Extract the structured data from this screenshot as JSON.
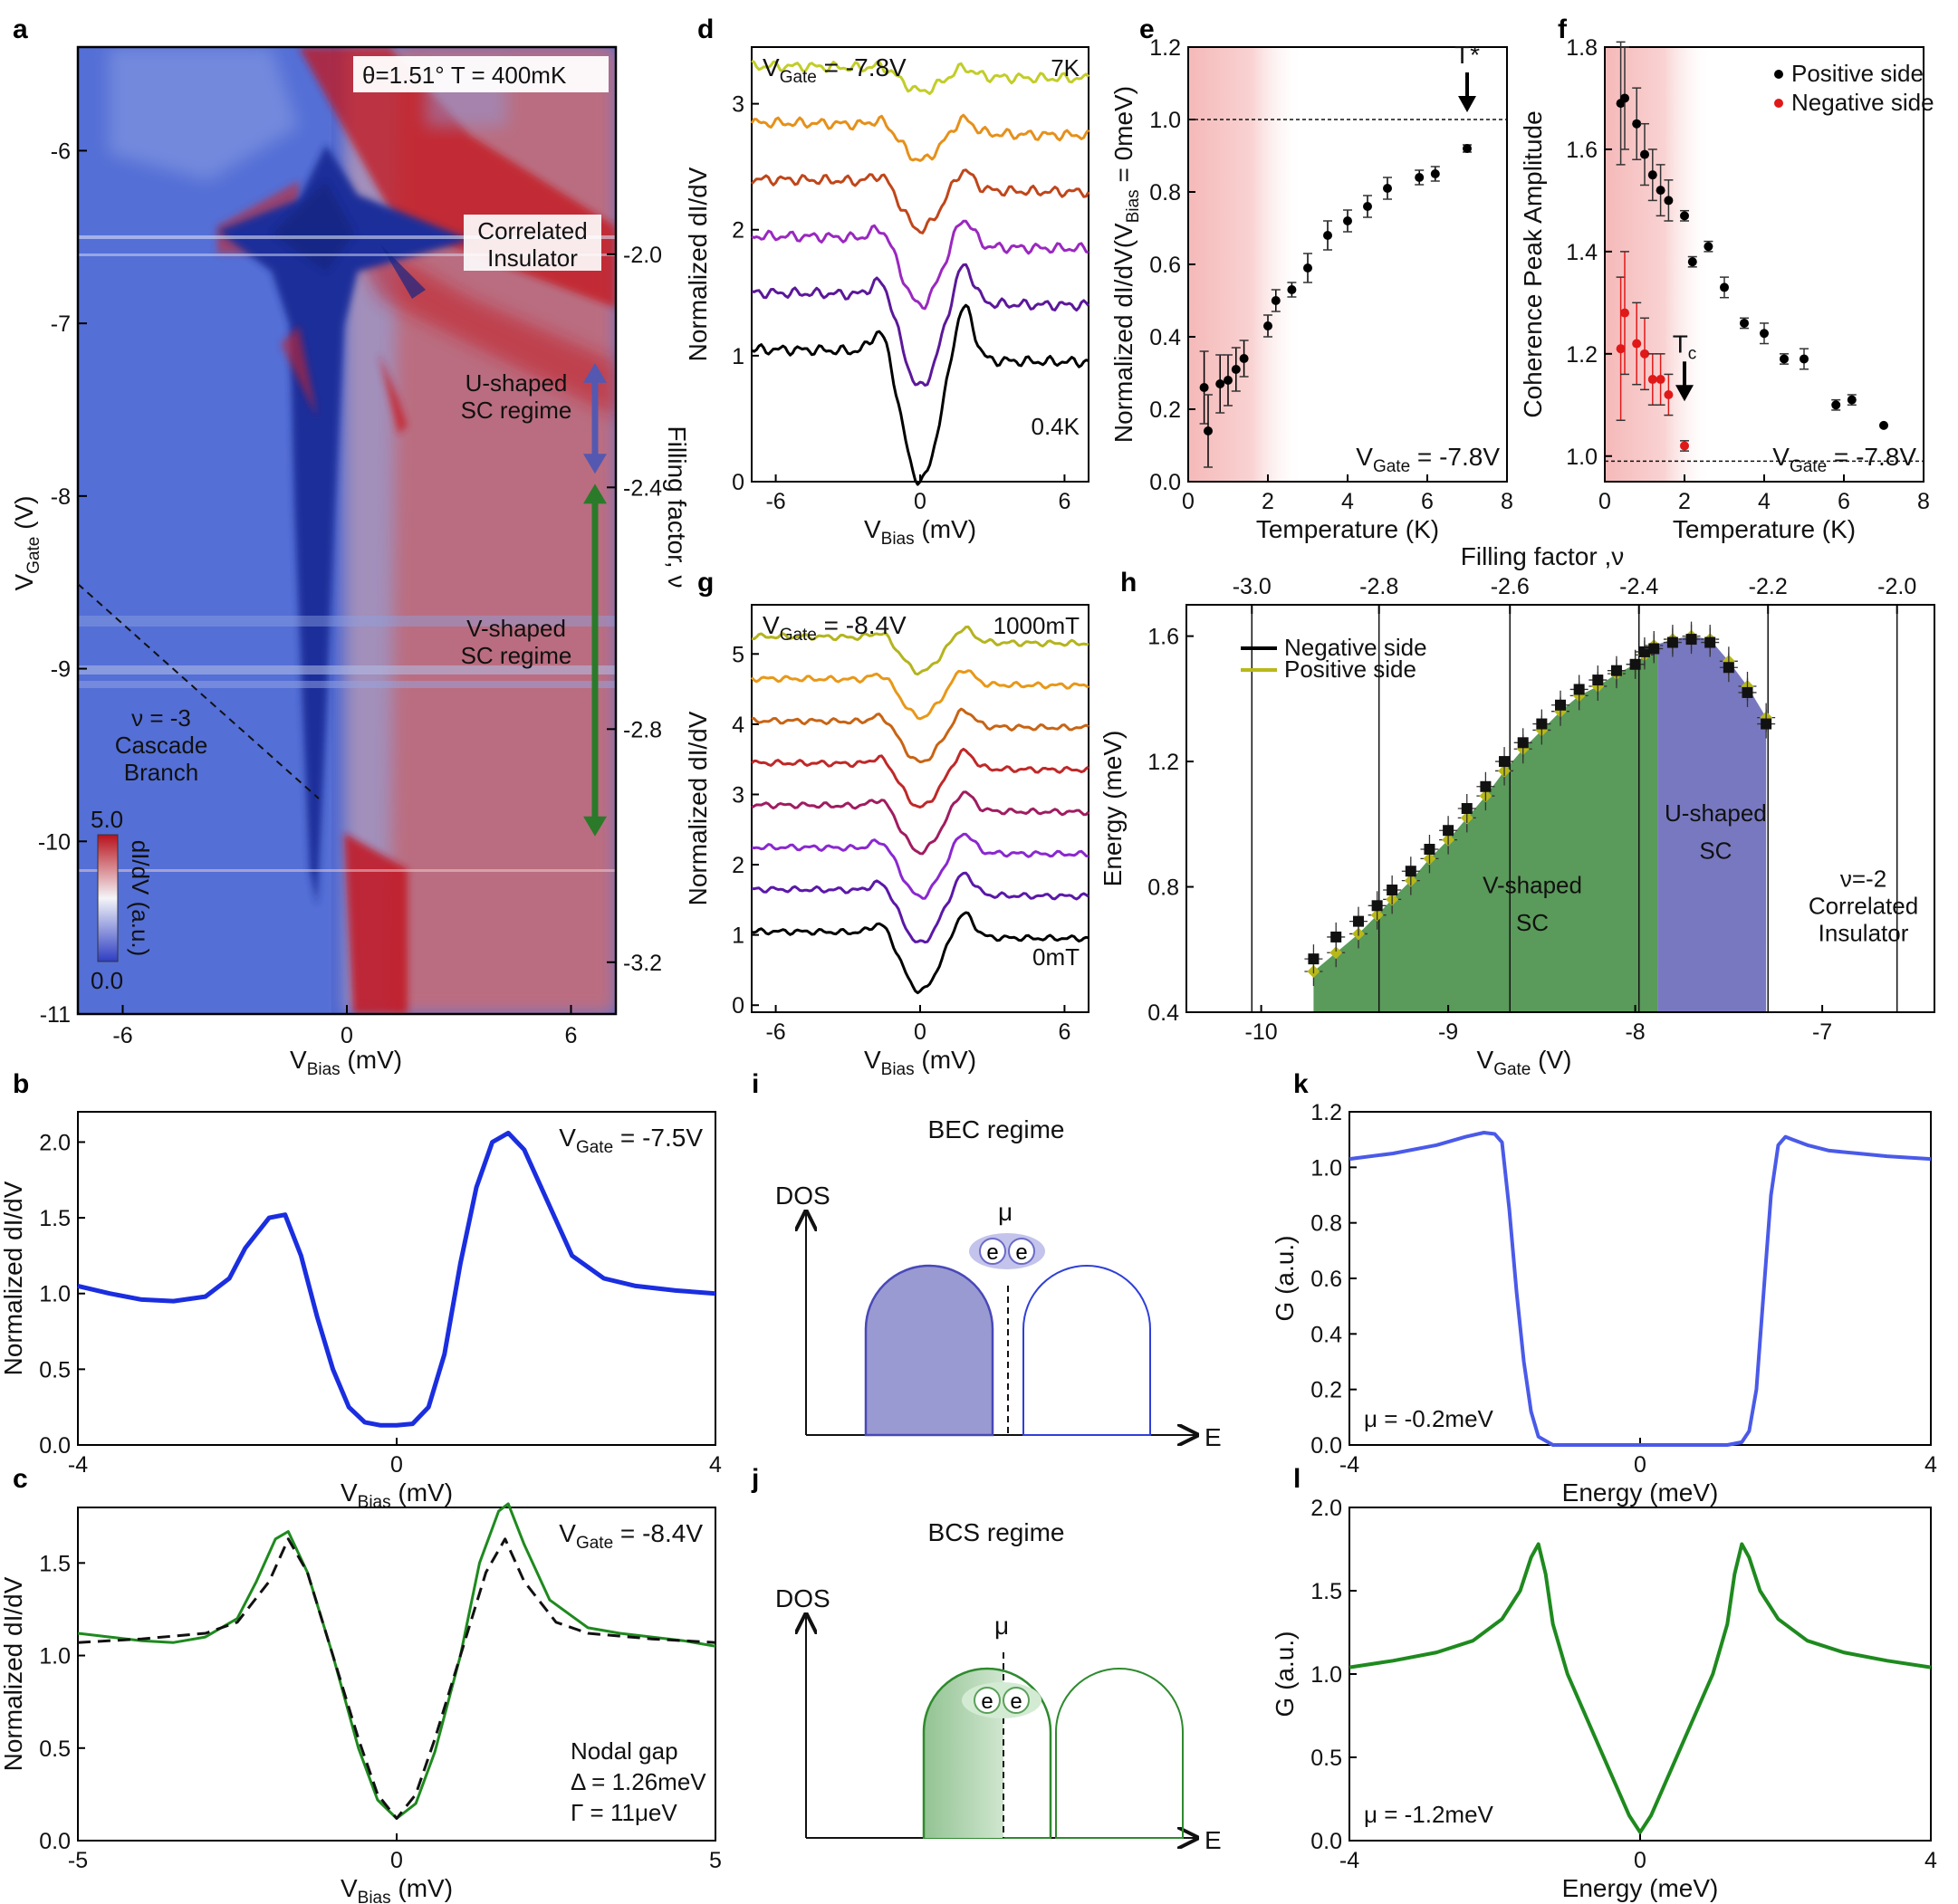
{
  "figure": {
    "panel_letters": [
      "a",
      "b",
      "c",
      "d",
      "e",
      "f",
      "g",
      "h",
      "i",
      "j",
      "k",
      "l"
    ]
  },
  "chart_data": [
    {
      "id": "a",
      "type": "heatmap",
      "title": "θ=1.51° T = 400mK",
      "xlabel": "V",
      "xlabel_sub": "Bias",
      "xlabel_unit": " (mV)",
      "ylabel": "V",
      "ylabel_sub": "Gate",
      "ylabel_unit": " (V)",
      "y2label": "Filling factor, ν",
      "xlim": [
        -7.2,
        7.2
      ],
      "ylim": [
        -11,
        -5.4
      ],
      "xticks": [
        -6,
        0,
        6
      ],
      "yticks": [
        -6,
        -7,
        -8,
        -9,
        -10,
        -11
      ],
      "y2ticks": [
        {
          "label": "-2.0",
          "vgate": -6.6
        },
        {
          "label": "-2.4",
          "vgate": -7.95
        },
        {
          "label": "-2.8",
          "vgate": -9.35
        },
        {
          "label": "-3.2",
          "vgate": -10.7
        }
      ],
      "colorbar": {
        "label": "dI/dV (a.u.)",
        "max": "5.0",
        "min": "0.0"
      },
      "annotations": [
        "Correlated",
        "Insulator",
        "U-shaped",
        "SC regime",
        "V-shaped",
        "SC regime",
        "ν = -3",
        "Cascade",
        "Branch"
      ],
      "arrows": [
        {
          "color": "#5558b0",
          "from": -7.25,
          "to": -7.85
        },
        {
          "color": "#2a7a2a",
          "from": -7.95,
          "to": -9.95
        }
      ],
      "colors": {
        "low": "#3c56c8",
        "mid": "#f3f3f8",
        "high": "#c0161f"
      }
    },
    {
      "id": "b",
      "type": "line",
      "title": "V",
      "title_sub": "Gate",
      "title_rest": " = -7.5V",
      "xlabel": "V",
      "xlabel_sub": "Bias",
      "xlabel_unit": " (mV)",
      "ylabel": "Normalized dI/dV",
      "xlim": [
        -4,
        4
      ],
      "ylim": [
        0,
        2.2
      ],
      "xticks": [
        -4,
        0,
        4
      ],
      "yticks": [
        0.0,
        0.5,
        1.0,
        1.5,
        2.0
      ],
      "series": [
        {
          "name": "data",
          "color": "#1a2ee0",
          "x": [
            -4,
            -3.6,
            -3.2,
            -2.8,
            -2.4,
            -2.1,
            -1.9,
            -1.6,
            -1.4,
            -1.2,
            -1.0,
            -0.8,
            -0.6,
            -0.4,
            -0.2,
            0,
            0.2,
            0.4,
            0.6,
            0.8,
            1.0,
            1.2,
            1.4,
            1.6,
            1.9,
            2.2,
            2.6,
            3.0,
            3.5,
            4.0
          ],
          "y": [
            1.05,
            1.0,
            0.96,
            0.95,
            0.98,
            1.1,
            1.3,
            1.5,
            1.52,
            1.25,
            0.85,
            0.5,
            0.25,
            0.15,
            0.13,
            0.13,
            0.14,
            0.25,
            0.6,
            1.2,
            1.7,
            2.0,
            2.06,
            1.95,
            1.6,
            1.25,
            1.1,
            1.05,
            1.02,
            1.0
          ]
        }
      ]
    },
    {
      "id": "c",
      "type": "line",
      "title": "V",
      "title_sub": "Gate",
      "title_rest": " = -8.4V",
      "xlabel": "V",
      "xlabel_sub": "Bias",
      "xlabel_unit": " (mV)",
      "ylabel": "Normalized dI/dV",
      "xlim": [
        -5,
        5
      ],
      "ylim": [
        0,
        1.8
      ],
      "xticks": [
        -5,
        0,
        5
      ],
      "yticks": [
        0.0,
        0.5,
        1.0,
        1.5
      ],
      "annotation_lines": [
        "Nodal gap",
        "Δ = 1.26meV",
        "Γ = 11μeV"
      ],
      "series": [
        {
          "name": "data",
          "color": "#1e8a1e",
          "dash": false,
          "x": [
            -5,
            -4.5,
            -4,
            -3.5,
            -3,
            -2.5,
            -2.2,
            -1.9,
            -1.7,
            -1.4,
            -1.0,
            -0.6,
            -0.3,
            0,
            0.3,
            0.6,
            1.0,
            1.3,
            1.6,
            1.75,
            2.0,
            2.4,
            3.0,
            3.5,
            4.0,
            4.5,
            5.0
          ],
          "y": [
            1.12,
            1.1,
            1.08,
            1.07,
            1.1,
            1.2,
            1.4,
            1.63,
            1.67,
            1.45,
            1.0,
            0.5,
            0.22,
            0.12,
            0.2,
            0.48,
            1.0,
            1.5,
            1.78,
            1.82,
            1.6,
            1.3,
            1.15,
            1.12,
            1.1,
            1.08,
            1.05
          ]
        },
        {
          "name": "fit",
          "color": "#111111",
          "dash": true,
          "x": [
            -5,
            -4,
            -3,
            -2.5,
            -2.0,
            -1.7,
            -1.4,
            -1.0,
            -0.6,
            -0.3,
            0,
            0.3,
            0.6,
            1.0,
            1.4,
            1.7,
            2.0,
            2.5,
            3,
            4,
            5
          ],
          "y": [
            1.07,
            1.09,
            1.12,
            1.18,
            1.4,
            1.63,
            1.45,
            1.0,
            0.55,
            0.25,
            0.12,
            0.25,
            0.55,
            1.0,
            1.45,
            1.63,
            1.4,
            1.18,
            1.12,
            1.09,
            1.07
          ]
        }
      ]
    },
    {
      "id": "d",
      "type": "line",
      "title": "V",
      "title_sub": "Gate",
      "title_rest": " = -7.8V",
      "xlabel": "V",
      "xlabel_sub": "Bias",
      "xlabel_unit": " (mV)",
      "ylabel": "Normalized dI/dV",
      "xlim": [
        -7,
        7
      ],
      "ylim": [
        0,
        3.45
      ],
      "xticks": [
        -6,
        0,
        6
      ],
      "yticks": [
        0,
        1,
        2,
        3
      ],
      "legend_top": "7K",
      "legend_bottom": "0.4K",
      "offsets": [
        0,
        0.45,
        0.9,
        1.35,
        1.8,
        2.25
      ],
      "series_colors": [
        "#000000",
        "#5b189a",
        "#9a28c0",
        "#c0461a",
        "#e6901a",
        "#c2cd28"
      ],
      "gaps": [
        1.0,
        0.7,
        0.5,
        0.35,
        0.25,
        0.15
      ]
    },
    {
      "id": "e",
      "type": "scatter",
      "title": "V",
      "title_sub": "Gate",
      "title_rest": " = -7.8V",
      "xlabel": "Temperature (K)",
      "ylabel": "Normalized dI/dV(V",
      "ylabel_sub": "Bias",
      "ylabel_rest": " = 0meV)",
      "xlim": [
        0,
        8
      ],
      "ylim": [
        0,
        1.2
      ],
      "xticks": [
        0,
        2,
        4,
        6,
        8
      ],
      "yticks": [
        0.0,
        0.2,
        0.4,
        0.6,
        0.8,
        1.0,
        1.2
      ],
      "marker": "T*",
      "marker_x": 7.0,
      "dashed_line_y": 1.0,
      "x": [
        0.4,
        0.5,
        0.8,
        1.0,
        1.2,
        1.4,
        2.0,
        2.2,
        2.6,
        3.0,
        3.5,
        4.0,
        4.5,
        5.0,
        5.8,
        6.2,
        7.0
      ],
      "y": [
        0.26,
        0.14,
        0.27,
        0.28,
        0.31,
        0.34,
        0.43,
        0.5,
        0.53,
        0.59,
        0.68,
        0.72,
        0.76,
        0.81,
        0.84,
        0.85,
        0.92
      ],
      "err": [
        0.1,
        0.1,
        0.08,
        0.07,
        0.06,
        0.05,
        0.03,
        0.03,
        0.02,
        0.04,
        0.04,
        0.03,
        0.03,
        0.03,
        0.02,
        0.02,
        0.01
      ]
    },
    {
      "id": "f",
      "type": "scatter",
      "title": "V",
      "title_sub": "Gate",
      "title_rest": " = -7.8V",
      "xlabel": "Temperature (K)",
      "ylabel": "Coherence Peak Amplitude",
      "xlim": [
        0,
        8
      ],
      "ylim": [
        0.95,
        1.8
      ],
      "xticks": [
        0,
        2,
        4,
        6,
        8
      ],
      "yticks": [
        1.0,
        1.2,
        1.4,
        1.6,
        1.8
      ],
      "marker": "T",
      "marker_sub": "c",
      "marker_x": 2.0,
      "dashed_line_y": 0.99,
      "series": [
        {
          "name": "Positive side",
          "color": "#000000",
          "x": [
            0.4,
            0.5,
            0.8,
            1.0,
            1.2,
            1.4,
            1.6,
            2.0,
            2.2,
            2.6,
            3.0,
            3.5,
            4.0,
            4.5,
            5.0,
            5.8,
            6.2,
            7.0
          ],
          "y": [
            1.69,
            1.7,
            1.65,
            1.59,
            1.55,
            1.52,
            1.5,
            1.47,
            1.38,
            1.41,
            1.33,
            1.26,
            1.24,
            1.19,
            1.19,
            1.1,
            1.11,
            1.06
          ],
          "err": [
            0.12,
            0.1,
            0.07,
            0.06,
            0.05,
            0.05,
            0.04,
            0.01,
            0.01,
            0.01,
            0.02,
            0.01,
            0.02,
            0.01,
            0.02,
            0.01,
            0.01,
            0.0
          ]
        },
        {
          "name": "Negative side",
          "color": "#e01818",
          "x": [
            0.4,
            0.5,
            0.8,
            1.0,
            1.2,
            1.4,
            1.6,
            2.0
          ],
          "y": [
            1.21,
            1.28,
            1.22,
            1.2,
            1.15,
            1.15,
            1.12,
            1.02
          ],
          "err": [
            0.14,
            0.12,
            0.08,
            0.07,
            0.05,
            0.05,
            0.04,
            0.01
          ]
        }
      ]
    },
    {
      "id": "g",
      "type": "line",
      "title": "V",
      "title_sub": "Gate",
      "title_rest": " = -8.4V",
      "xlabel": "V",
      "xlabel_sub": "Bias",
      "xlabel_unit": " (mV)",
      "ylabel": "Normalized dI/dV",
      "xlim": [
        -7,
        7
      ],
      "ylim": [
        -0.1,
        5.7
      ],
      "xticks": [
        -6,
        0,
        6
      ],
      "yticks": [
        0,
        1,
        2,
        3,
        4,
        5
      ],
      "legend_top": "1000mT",
      "legend_bottom": "0mT",
      "offsets": [
        0,
        0.6,
        1.2,
        1.8,
        2.4,
        3.0,
        3.6,
        4.2
      ],
      "series_colors": [
        "#000000",
        "#5a18a8",
        "#8a28d0",
        "#a01c60",
        "#c02828",
        "#c86414",
        "#e89818",
        "#b4b41e"
      ],
      "gaps": [
        0.8,
        0.72,
        0.66,
        0.62,
        0.58,
        0.54,
        0.5,
        0.46
      ]
    },
    {
      "id": "h",
      "type": "area",
      "title": "Filling factor ,ν",
      "xlabel": "V",
      "xlabel_sub": "Gate",
      "xlabel_unit": " (V)",
      "ylabel": "Energy (meV)",
      "xlim": [
        -10.4,
        -6.4
      ],
      "ylim": [
        0.4,
        1.7
      ],
      "xticks": [
        -10.0,
        -9.0,
        -8.0,
        -7.0
      ],
      "yticks": [
        0.4,
        0.8,
        1.2,
        1.6
      ],
      "x2ticks": [
        {
          "label": "-3.0",
          "vgate": -10.05
        },
        {
          "label": "-2.8",
          "vgate": -9.37
        },
        {
          "label": "-2.6",
          "vgate": -8.67
        },
        {
          "label": "-2.4",
          "vgate": -7.98
        },
        {
          "label": "-2.2",
          "vgate": -7.29
        },
        {
          "label": "-2.0",
          "vgate": -6.6
        }
      ],
      "legend": [
        {
          "name": "Negative side",
          "color": "#000000"
        },
        {
          "name": "Positive side",
          "color": "#b8b81a"
        }
      ],
      "regions": [
        {
          "name": "V-shaped",
          "sub": "SC",
          "color": "#5a9a5a"
        },
        {
          "name": "U-shaped",
          "sub": "SC",
          "color": "#7878c0"
        }
      ],
      "region_boundary": -7.88,
      "insulator_label": [
        "ν=-2",
        "Correlated",
        "Insulator"
      ],
      "x": [
        -9.72,
        -9.6,
        -9.48,
        -9.38,
        -9.3,
        -9.2,
        -9.1,
        -9.0,
        -8.9,
        -8.8,
        -8.7,
        -8.6,
        -8.5,
        -8.4,
        -8.3,
        -8.2,
        -8.1,
        -8.0,
        -7.95,
        -7.9,
        -7.8,
        -7.7,
        -7.6,
        -7.5,
        -7.4,
        -7.3
      ],
      "negative": [
        0.57,
        0.64,
        0.69,
        0.74,
        0.79,
        0.85,
        0.92,
        0.98,
        1.05,
        1.12,
        1.2,
        1.26,
        1.32,
        1.38,
        1.43,
        1.46,
        1.49,
        1.51,
        1.55,
        1.56,
        1.58,
        1.59,
        1.58,
        1.5,
        1.42,
        1.32
      ],
      "positive": [
        0.53,
        0.59,
        0.65,
        0.71,
        0.76,
        0.82,
        0.89,
        0.95,
        1.02,
        1.09,
        1.17,
        1.24,
        1.3,
        1.36,
        1.41,
        1.44,
        1.48,
        1.51,
        1.54,
        1.57,
        1.59,
        1.6,
        1.59,
        1.52,
        1.44,
        1.34
      ]
    },
    {
      "id": "i",
      "type": "diagram",
      "title": "BEC regime",
      "ylabel": "DOS",
      "xlabel": "E",
      "mu": "μ",
      "pair": [
        "e",
        "e"
      ],
      "color": "#4848b8",
      "fill": "#9a9ad2"
    },
    {
      "id": "j",
      "type": "diagram",
      "title": "BCS regime",
      "ylabel": "DOS",
      "xlabel": "E",
      "mu": "μ",
      "pair": [
        "e",
        "e"
      ],
      "color": "#2e8a2e",
      "fill": "#93c393"
    },
    {
      "id": "k",
      "type": "line",
      "xlabel": "Energy (meV)",
      "ylabel": "G (a.u.)",
      "xlim": [
        -4,
        4
      ],
      "ylim": [
        0,
        1.2
      ],
      "xticks": [
        -4,
        0,
        4
      ],
      "yticks": [
        0.0,
        0.2,
        0.4,
        0.6,
        0.8,
        1.0,
        1.2
      ],
      "annotation": "μ = -0.2meV",
      "series": [
        {
          "name": "model",
          "color": "#4a5ae8",
          "x": [
            -4,
            -3.4,
            -2.8,
            -2.4,
            -2.15,
            -2.0,
            -1.9,
            -1.8,
            -1.7,
            -1.6,
            -1.5,
            -1.4,
            -1.2,
            -0.6,
            0,
            0.6,
            1.2,
            1.4,
            1.5,
            1.6,
            1.7,
            1.8,
            1.9,
            2.0,
            2.1,
            2.3,
            2.6,
            3.0,
            3.4,
            4.0
          ],
          "y": [
            1.03,
            1.05,
            1.08,
            1.11,
            1.125,
            1.12,
            1.09,
            0.85,
            0.55,
            0.3,
            0.12,
            0.03,
            0.0,
            0.0,
            0.0,
            0.0,
            0.0,
            0.01,
            0.05,
            0.2,
            0.55,
            0.9,
            1.08,
            1.11,
            1.1,
            1.08,
            1.06,
            1.05,
            1.04,
            1.03
          ]
        }
      ]
    },
    {
      "id": "l",
      "type": "line",
      "xlabel": "Energy (meV)",
      "ylabel": "G (a.u.)",
      "xlim": [
        -4,
        4
      ],
      "ylim": [
        0,
        2.0
      ],
      "xticks": [
        -4,
        0,
        4
      ],
      "yticks": [
        0.0,
        0.5,
        1.0,
        1.5,
        2.0
      ],
      "annotation": "μ = -1.2meV",
      "series": [
        {
          "name": "model",
          "color": "#1e8a1e",
          "x": [
            -4,
            -3.4,
            -2.8,
            -2.3,
            -1.9,
            -1.65,
            -1.5,
            -1.4,
            -1.3,
            -1.2,
            -1.0,
            -0.7,
            -0.4,
            -0.15,
            0,
            0.15,
            0.4,
            0.7,
            1.0,
            1.2,
            1.3,
            1.4,
            1.5,
            1.65,
            1.9,
            2.3,
            2.8,
            3.4,
            4.0
          ],
          "y": [
            1.04,
            1.08,
            1.13,
            1.2,
            1.33,
            1.5,
            1.7,
            1.78,
            1.6,
            1.3,
            1.0,
            0.7,
            0.4,
            0.15,
            0.05,
            0.15,
            0.4,
            0.7,
            1.0,
            1.3,
            1.6,
            1.78,
            1.7,
            1.5,
            1.33,
            1.2,
            1.13,
            1.08,
            1.04
          ]
        }
      ]
    }
  ]
}
